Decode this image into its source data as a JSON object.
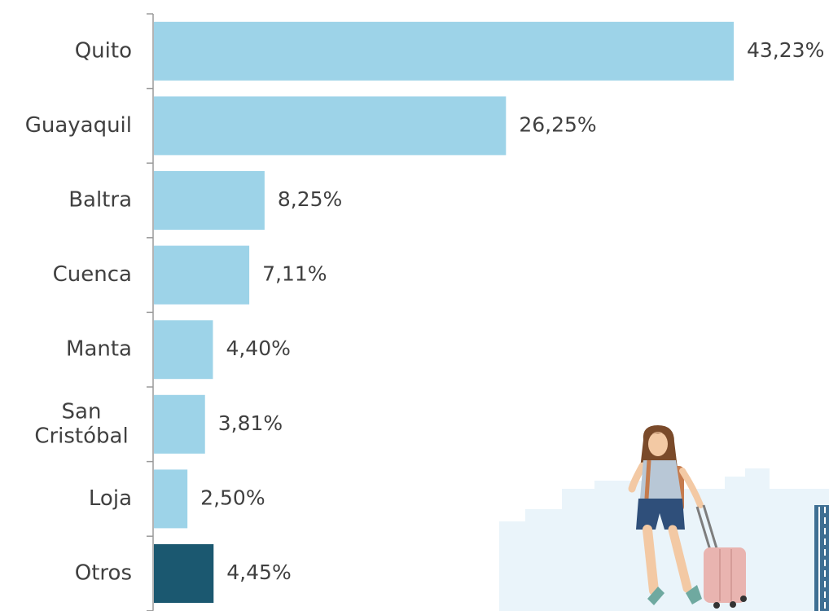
{
  "chart_data": {
    "type": "bar",
    "orientation": "horizontal",
    "categories": [
      "Quito",
      "Guayaquil",
      "Baltra",
      "Cuenca",
      "Manta",
      "San Cristóbal",
      "Loja",
      "Otros"
    ],
    "values": [
      43.23,
      26.25,
      8.25,
      7.11,
      4.4,
      3.81,
      2.5,
      4.45
    ],
    "value_labels": [
      "43,23%",
      "26,25%",
      "8,25%",
      "7,11%",
      "4,40%",
      "3,81%",
      "2,50%",
      "4,45%"
    ],
    "title": "",
    "xlabel": "",
    "ylabel": "",
    "xlim": [
      0,
      43.23
    ],
    "grid": false,
    "legend": "none",
    "colors": {
      "bar": "#9dd3e8",
      "highlight_bar": "#1b5870",
      "axis": "#9a9a9a",
      "text": "#404040"
    },
    "highlight_category": "Otros"
  },
  "illustration": {
    "icon": "traveler-with-suitcase-icon",
    "colors": {
      "skyline": "#eaf4fa",
      "hair": "#7a4a2a",
      "skin": "#f3c9a4",
      "shirt": "#b8c7d6",
      "shorts": "#2f4f7a",
      "backpack": "#c57b4e",
      "suitcase": "#e9b4b0",
      "building": "#3e6f93"
    }
  }
}
